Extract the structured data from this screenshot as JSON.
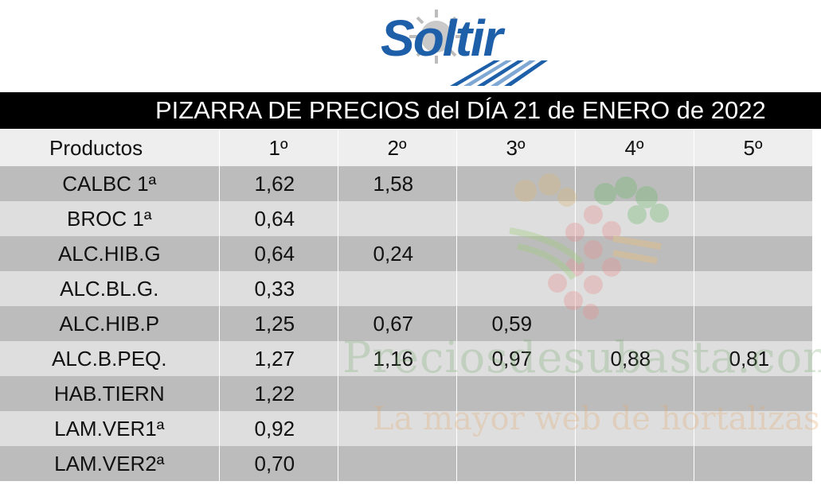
{
  "brand": {
    "logo_text": "Soltir"
  },
  "title": "PIZARRA DE PRECIOS del DÍA 21 de ENERO de 2022",
  "table": {
    "headers": [
      "Productos",
      "1º",
      "2º",
      "3º",
      "4º",
      "5º"
    ],
    "rows": [
      [
        "CALBC 1ª",
        "1,62",
        "1,58",
        "",
        "",
        ""
      ],
      [
        "BROC 1ª",
        "0,64",
        "",
        "",
        "",
        ""
      ],
      [
        "ALC.HIB.G",
        "0,64",
        "0,24",
        "",
        "",
        ""
      ],
      [
        "ALC.BL.G.",
        "0,33",
        "",
        "",
        "",
        ""
      ],
      [
        "ALC.HIB.P",
        "1,25",
        "0,67",
        "0,59",
        "",
        ""
      ],
      [
        "ALC.B.PEQ.",
        "1,27",
        "1,16",
        "0,97",
        "0,88",
        "0,81"
      ],
      [
        "HAB.TIERN",
        "1,22",
        "",
        "",
        "",
        ""
      ],
      [
        "LAM.VER1ª",
        "0,92",
        "",
        "",
        "",
        ""
      ],
      [
        "LAM.VER2ª",
        "0,70",
        "",
        "",
        "",
        ""
      ]
    ]
  },
  "watermark": {
    "main": "Preciosdesubasta.com",
    "sub": "La mayor web de hortalizas"
  },
  "colors": {
    "title_bg": "#000000",
    "row_dark": "#bcbcbc",
    "row_light": "#dedede",
    "header_bg": "#eeeeee",
    "logo_blue": "#1d5fa8"
  }
}
